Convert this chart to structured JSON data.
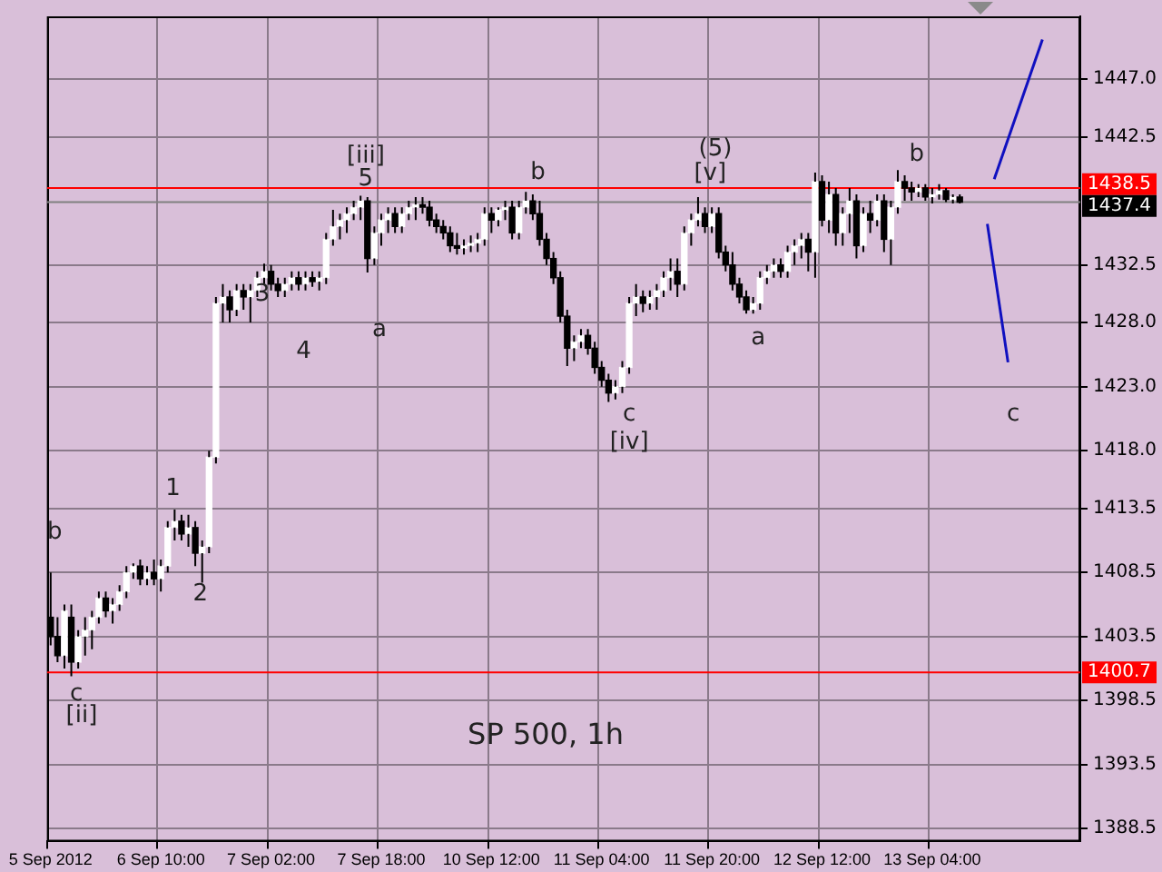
{
  "chart_data": {
    "type": "candlestick",
    "title": "SP 500, 1h",
    "color": "#000000",
    "categories": [
      "5 Sep 2012",
      null,
      null,
      null,
      null,
      null,
      null,
      null,
      null,
      null,
      null,
      null,
      null,
      null,
      null,
      null,
      "6 Sep 10:00",
      null,
      null,
      null,
      null,
      null,
      null,
      null,
      null,
      null,
      null,
      null,
      null,
      null,
      null,
      null,
      "7 Sep 02:00",
      null,
      null,
      null,
      null,
      null,
      null,
      null,
      null,
      null,
      null,
      null,
      null,
      null,
      null,
      null,
      "7 Sep 18:00",
      null,
      null,
      null,
      null,
      null,
      null,
      null,
      null,
      null,
      null,
      null,
      null,
      null,
      null,
      null,
      "10 Sep 12:00",
      null,
      null,
      null,
      null,
      null,
      null,
      null,
      null,
      null,
      null,
      null,
      null,
      null,
      null,
      null,
      "11 Sep 04:00",
      null,
      null,
      null,
      null,
      null,
      null,
      null,
      null,
      null,
      null,
      null,
      null,
      null,
      null,
      null,
      "11 Sep 20:00",
      null,
      null,
      null,
      null,
      null,
      null,
      null,
      null,
      null,
      null,
      null,
      null,
      null,
      null,
      null,
      "12 Sep 12:00",
      null,
      null,
      null,
      null,
      null,
      null,
      null,
      null,
      null,
      null,
      null,
      null,
      null,
      null,
      null,
      "13 Sep 04:00",
      null,
      null,
      null,
      null,
      null,
      null,
      null,
      null,
      null,
      null,
      null,
      null,
      null,
      null,
      null,
      null,
      null,
      null,
      null,
      null,
      null
    ],
    "ohlc": [
      [
        1405,
        1408.5,
        1402.8,
        1403.5
      ],
      [
        1403.5,
        1405,
        1401.5,
        1402
      ],
      [
        1402,
        1406,
        1401,
        1405.5
      ],
      [
        1405,
        1406,
        1400.4,
        1401.5
      ],
      [
        1401.5,
        1404,
        1401,
        1403.5
      ],
      [
        1403.5,
        1405,
        1402,
        1404
      ],
      [
        1404,
        1405.5,
        1402.5,
        1405
      ],
      [
        1405,
        1407,
        1404.5,
        1406.5
      ],
      [
        1406.5,
        1407,
        1405,
        1405.5
      ],
      [
        1405.5,
        1406.5,
        1404.5,
        1406
      ],
      [
        1406,
        1407.5,
        1405.5,
        1407
      ],
      [
        1407,
        1409,
        1406.5,
        1408.5
      ],
      [
        1408.5,
        1409.2,
        1408,
        1409
      ],
      [
        1409,
        1409.5,
        1407.5,
        1408
      ],
      [
        1408,
        1409,
        1407.5,
        1408.5
      ],
      [
        1408.5,
        1409.5,
        1407.5,
        1408
      ],
      [
        1408,
        1409.5,
        1407,
        1409
      ],
      [
        1409,
        1412.5,
        1408.5,
        1412
      ],
      [
        1412,
        1413.4,
        1411,
        1412.5
      ],
      [
        1412.5,
        1413,
        1411,
        1411.5
      ],
      [
        1411.5,
        1413,
        1410.5,
        1412
      ],
      [
        1412,
        1412.5,
        1409,
        1410
      ],
      [
        1410,
        1411,
        1407.7,
        1410.5
      ],
      [
        1410.5,
        1418,
        1410,
        1417.5
      ],
      [
        1417.5,
        1430,
        1417,
        1429.5
      ],
      [
        1429.5,
        1431,
        1428,
        1430
      ],
      [
        1430,
        1430.5,
        1428,
        1429
      ],
      [
        1429,
        1431,
        1428.5,
        1430.5
      ],
      [
        1430.5,
        1431,
        1429,
        1430
      ],
      [
        1430,
        1431,
        1428,
        1430.5
      ],
      [
        1430.5,
        1432,
        1430,
        1431.5
      ],
      [
        1431.5,
        1432.6,
        1431,
        1432
      ],
      [
        1432,
        1432.5,
        1430.5,
        1431
      ],
      [
        1431,
        1431.5,
        1430,
        1430.5
      ],
      [
        1430.5,
        1431.5,
        1430,
        1431
      ],
      [
        1431,
        1432,
        1430.5,
        1431.5
      ],
      [
        1431.5,
        1432,
        1430.5,
        1431
      ],
      [
        1431,
        1432,
        1430.5,
        1431.5
      ],
      [
        1431.5,
        1432,
        1430.8,
        1431.2
      ],
      [
        1431.2,
        1432,
        1430.5,
        1431.5
      ],
      [
        1431.5,
        1435,
        1431,
        1434.5
      ],
      [
        1434.5,
        1436.8,
        1434,
        1435.5
      ],
      [
        1435.5,
        1436.5,
        1434.5,
        1436
      ],
      [
        1436,
        1437,
        1435,
        1436.5
      ],
      [
        1436.5,
        1437.5,
        1436,
        1437
      ],
      [
        1437,
        1437.9,
        1436,
        1437.5
      ],
      [
        1437.5,
        1437.8,
        1431.9,
        1433
      ],
      [
        1433,
        1435.5,
        1432.5,
        1435
      ],
      [
        1435,
        1436.5,
        1434,
        1436
      ],
      [
        1436,
        1437,
        1435,
        1436.5
      ],
      [
        1436.5,
        1437,
        1435,
        1435.5
      ],
      [
        1435.5,
        1437,
        1435,
        1436.5
      ],
      [
        1436.5,
        1437.5,
        1436,
        1437
      ],
      [
        1437,
        1437.8,
        1436,
        1437.2
      ],
      [
        1437.2,
        1437.8,
        1436.5,
        1437
      ],
      [
        1437,
        1437.5,
        1435.5,
        1436
      ],
      [
        1436,
        1436.5,
        1435,
        1435.5
      ],
      [
        1435.5,
        1436,
        1434.5,
        1435
      ],
      [
        1435,
        1435.5,
        1433.5,
        1434
      ],
      [
        1434,
        1435,
        1433.3,
        1433.8
      ],
      [
        1433.8,
        1434.5,
        1433.3,
        1434
      ],
      [
        1434,
        1434.8,
        1433.5,
        1434.2
      ],
      [
        1434.2,
        1435,
        1433.5,
        1434.5
      ],
      [
        1434.5,
        1437,
        1434,
        1436.5
      ],
      [
        1436.5,
        1437,
        1435,
        1436
      ],
      [
        1436,
        1437,
        1435.5,
        1436.8
      ],
      [
        1436.8,
        1437.5,
        1436,
        1437
      ],
      [
        1437,
        1437.5,
        1434.5,
        1435
      ],
      [
        1435,
        1437.5,
        1434.5,
        1437
      ],
      [
        1437,
        1438.2,
        1436.5,
        1437.5
      ],
      [
        1437.5,
        1438,
        1436,
        1436.5
      ],
      [
        1436.5,
        1437.5,
        1434,
        1434.5
      ],
      [
        1434.5,
        1435,
        1432.5,
        1433
      ],
      [
        1433,
        1433.5,
        1431,
        1431.5
      ],
      [
        1431.5,
        1432,
        1428,
        1428.5
      ],
      [
        1428.5,
        1429,
        1424.6,
        1426
      ],
      [
        1426,
        1427,
        1425,
        1426.5
      ],
      [
        1426.5,
        1427.5,
        1426,
        1427
      ],
      [
        1427,
        1427.5,
        1425.5,
        1426
      ],
      [
        1426,
        1426.5,
        1424,
        1424.5
      ],
      [
        1424.5,
        1425,
        1423,
        1423.5
      ],
      [
        1423.5,
        1424,
        1421.8,
        1422.5
      ],
      [
        1422.5,
        1423.5,
        1422,
        1423
      ],
      [
        1423,
        1425,
        1422.5,
        1424.5
      ],
      [
        1424.5,
        1430,
        1424,
        1429.5
      ],
      [
        1429.5,
        1431,
        1428.5,
        1430
      ],
      [
        1430,
        1430.5,
        1428.8,
        1429.5
      ],
      [
        1429.5,
        1430.5,
        1429,
        1430
      ],
      [
        1430,
        1431,
        1429,
        1430.5
      ],
      [
        1430.5,
        1432,
        1430,
        1431.5
      ],
      [
        1431.5,
        1433,
        1430.5,
        1432
      ],
      [
        1432,
        1433,
        1430,
        1431
      ],
      [
        1431,
        1435.5,
        1430.5,
        1435
      ],
      [
        1435,
        1436.5,
        1434,
        1436
      ],
      [
        1436,
        1437.8,
        1435.5,
        1436.5
      ],
      [
        1436.5,
        1437,
        1435,
        1435.5
      ],
      [
        1435.5,
        1437,
        1435,
        1436.5
      ],
      [
        1436.5,
        1437,
        1433,
        1433.5
      ],
      [
        1433.5,
        1434,
        1432,
        1432.5
      ],
      [
        1432.5,
        1433.5,
        1430.5,
        1431
      ],
      [
        1431,
        1431.5,
        1429.5,
        1430
      ],
      [
        1430,
        1430.5,
        1428.7,
        1429
      ],
      [
        1429,
        1430,
        1428.7,
        1429.5
      ],
      [
        1429.5,
        1432,
        1429,
        1431.5
      ],
      [
        1431.5,
        1432.5,
        1431,
        1432
      ],
      [
        1432,
        1433,
        1431.5,
        1432.5
      ],
      [
        1432.5,
        1433,
        1431.5,
        1432
      ],
      [
        1432,
        1434,
        1431.5,
        1433.5
      ],
      [
        1433.5,
        1434.5,
        1432.5,
        1434
      ],
      [
        1434,
        1435,
        1433,
        1434.5
      ],
      [
        1434.5,
        1435,
        1432,
        1433.5
      ],
      [
        1433.5,
        1439.7,
        1431.5,
        1439
      ],
      [
        1439,
        1439.5,
        1435.5,
        1436
      ],
      [
        1436,
        1439,
        1435,
        1438
      ],
      [
        1438,
        1438.5,
        1434,
        1435
      ],
      [
        1435,
        1437,
        1434,
        1436.5
      ],
      [
        1436.5,
        1438.5,
        1435,
        1437.5
      ],
      [
        1437.5,
        1438,
        1433,
        1434
      ],
      [
        1434,
        1437,
        1433.5,
        1436.5
      ],
      [
        1436.5,
        1437.5,
        1435,
        1436
      ],
      [
        1436,
        1438,
        1435.5,
        1437.5
      ],
      [
        1437.5,
        1438,
        1433.5,
        1434.5
      ],
      [
        1434.5,
        1437.5,
        1432.5,
        1437
      ],
      [
        1437,
        1439.9,
        1436.5,
        1439
      ],
      [
        1439,
        1439.5,
        1437.5,
        1438.5
      ],
      [
        1438.5,
        1439,
        1437.5,
        1438.2
      ],
      [
        1438.2,
        1438.8,
        1437.8,
        1438.5
      ],
      [
        1438.5,
        1438.8,
        1437.5,
        1437.8
      ],
      [
        1437.8,
        1438.5,
        1437.3,
        1438
      ],
      [
        1438,
        1438.8,
        1437.6,
        1438.3
      ],
      [
        1438.3,
        1438.5,
        1437.4,
        1437.6
      ],
      [
        1437.6,
        1438,
        1437.3,
        1437.8
      ],
      [
        1437.8,
        1438,
        1437.3,
        1437.4
      ],
      null,
      null,
      null,
      null,
      null,
      null,
      null,
      null,
      null,
      null,
      null,
      null,
      null,
      null,
      null,
      null,
      null
    ],
    "series": [
      {
        "type": "line",
        "color": "#1010c0",
        "values": [
          null,
          null,
          null,
          null,
          null,
          null,
          null,
          null,
          null,
          null,
          null,
          null,
          null,
          null,
          null,
          null,
          null,
          null,
          null,
          null,
          null,
          null,
          null,
          null,
          null,
          null,
          null,
          null,
          null,
          null,
          null,
          null,
          null,
          null,
          null,
          null,
          null,
          null,
          null,
          null,
          null,
          null,
          null,
          null,
          null,
          null,
          null,
          null,
          null,
          null,
          null,
          null,
          null,
          null,
          null,
          null,
          null,
          null,
          null,
          null,
          null,
          null,
          null,
          null,
          null,
          null,
          null,
          null,
          null,
          null,
          null,
          null,
          null,
          null,
          null,
          null,
          null,
          null,
          null,
          null,
          null,
          null,
          null,
          null,
          null,
          null,
          null,
          null,
          null,
          null,
          null,
          null,
          null,
          null,
          null,
          null,
          null,
          null,
          null,
          null,
          null,
          null,
          null,
          null,
          null,
          null,
          null,
          null,
          null,
          null,
          null,
          null,
          null,
          null,
          null,
          null,
          null,
          null,
          null,
          null,
          null,
          null,
          null,
          null,
          null,
          null,
          null,
          null,
          null,
          null,
          null,
          null,
          null,
          null,
          null,
          null,
          null,
          1439.2,
          null,
          null,
          null,
          null,
          null,
          null,
          1450.1,
          null,
          null,
          null,
          null,
          null
        ]
      },
      {
        "type": "line",
        "color": "#1010c0",
        "values": [
          null,
          null,
          null,
          null,
          null,
          null,
          null,
          null,
          null,
          null,
          null,
          null,
          null,
          null,
          null,
          null,
          null,
          null,
          null,
          null,
          null,
          null,
          null,
          null,
          null,
          null,
          null,
          null,
          null,
          null,
          null,
          null,
          null,
          null,
          null,
          null,
          null,
          null,
          null,
          null,
          null,
          null,
          null,
          null,
          null,
          null,
          null,
          null,
          null,
          null,
          null,
          null,
          null,
          null,
          null,
          null,
          null,
          null,
          null,
          null,
          null,
          null,
          null,
          null,
          null,
          null,
          null,
          null,
          null,
          null,
          null,
          null,
          null,
          null,
          null,
          null,
          null,
          null,
          null,
          null,
          null,
          null,
          null,
          null,
          null,
          null,
          null,
          null,
          null,
          null,
          null,
          null,
          null,
          null,
          null,
          null,
          null,
          null,
          null,
          null,
          null,
          null,
          null,
          null,
          null,
          null,
          null,
          null,
          null,
          null,
          null,
          null,
          null,
          null,
          null,
          null,
          null,
          null,
          null,
          null,
          null,
          null,
          null,
          null,
          null,
          null,
          null,
          null,
          null,
          null,
          null,
          null,
          null,
          null,
          null,
          null,
          1435.7,
          null,
          null,
          1424.9,
          null,
          null,
          null,
          null,
          null,
          null,
          null,
          null,
          null,
          null
        ]
      }
    ],
    "colors": [
      "#000000",
      "#000000",
      "#ffffff",
      "#000000",
      "#ffffff",
      "#ffffff",
      "#ffffff",
      "#ffffff",
      "#000000",
      "#ffffff",
      "#ffffff",
      "#ffffff",
      "#ffffff",
      "#000000",
      "#ffffff",
      "#000000",
      "#ffffff",
      "#ffffff",
      "#ffffff",
      "#000000",
      "#ffffff",
      "#000000",
      "#ffffff",
      "#ffffff",
      "#ffffff",
      "#ffffff",
      "#000000",
      "#ffffff",
      "#000000",
      "#ffffff",
      "#ffffff",
      "#ffffff",
      "#000000",
      "#000000",
      "#ffffff",
      "#ffffff",
      "#000000",
      "#ffffff",
      "#000000",
      "#ffffff",
      "#ffffff",
      "#ffffff",
      "#ffffff",
      "#ffffff",
      "#ffffff",
      "#ffffff",
      "#000000",
      "#ffffff",
      "#ffffff",
      "#ffffff",
      "#000000",
      "#ffffff",
      "#ffffff",
      "#ffffff",
      "#000000",
      "#000000",
      "#000000",
      "#000000",
      "#000000",
      "#000000",
      "#ffffff",
      "#ffffff",
      "#ffffff",
      "#ffffff",
      "#000000",
      "#ffffff",
      "#ffffff",
      "#000000",
      "#ffffff",
      "#ffffff",
      "#000000",
      "#000000",
      "#000000",
      "#000000",
      "#000000",
      "#000000",
      "#ffffff",
      "#ffffff",
      "#000000",
      "#000000",
      "#000000",
      "#000000",
      "#ffffff",
      "#ffffff",
      "#ffffff",
      "#ffffff",
      "#000000",
      "#ffffff",
      "#ffffff",
      "#ffffff",
      "#ffffff",
      "#000000",
      "#ffffff",
      "#ffffff",
      "#ffffff",
      "#000000",
      "#ffffff",
      "#000000",
      "#000000",
      "#000000",
      "#000000",
      "#000000",
      "#ffffff",
      "#ffffff",
      "#ffffff",
      "#ffffff",
      "#000000",
      "#ffffff",
      "#ffffff",
      "#ffffff",
      "#000000",
      "#ffffff",
      "#000000",
      "#ffffff",
      "#000000",
      "#ffffff",
      "#ffffff",
      "#000000",
      "#ffffff",
      "#000000",
      "#ffffff",
      "#000000",
      "#ffffff",
      "#ffffff",
      "#000000",
      "#000000",
      "#ffffff",
      "#000000",
      "#ffffff",
      "#ffffff",
      "#000000",
      "#ffffff",
      "#000000",
      null,
      null,
      null,
      null,
      null,
      null,
      null,
      null,
      null,
      null,
      null,
      null,
      null,
      null,
      null,
      null,
      null
    ],
    "ylim": [
      1387.5,
      1451.9
    ],
    "yticks": [
      {
        "value": 1447,
        "label": "1447.0"
      },
      {
        "value": 1442.5,
        "label": "1442.5"
      },
      {
        "value": 1432.5,
        "label": "1432.5"
      },
      {
        "value": 1428,
        "label": "1428.0"
      },
      {
        "value": 1423,
        "label": "1423.0"
      },
      {
        "value": 1418,
        "label": "1418.0"
      },
      {
        "value": 1413.5,
        "label": "1413.5"
      },
      {
        "value": 1408.5,
        "label": "1408.5"
      },
      {
        "value": 1403.5,
        "label": "1403.5"
      },
      {
        "value": 1398.5,
        "label": "1398.5"
      },
      {
        "value": 1393.5,
        "label": "1393.5"
      },
      {
        "value": 1388.5,
        "label": "1388.5"
      }
    ],
    "ref_lines": [
      {
        "axis": "y",
        "value": 1438.5,
        "label": "1438.5",
        "color": "#ff0000"
      },
      {
        "axis": "y",
        "value": 1437.4,
        "label": "1437.4",
        "color": "#808080"
      },
      {
        "axis": "y",
        "value": 1400.7,
        "label": "1400.7",
        "color": "#ff0000"
      }
    ],
    "annotations": [
      "b",
      "c",
      "[ii]",
      "1",
      "2",
      "3",
      "4",
      "[iii]",
      "5",
      "a",
      "b",
      "(5)",
      "[v]",
      "c",
      "[iv]",
      "a",
      "b",
      "c"
    ],
    "grid": true,
    "legend": false
  }
}
